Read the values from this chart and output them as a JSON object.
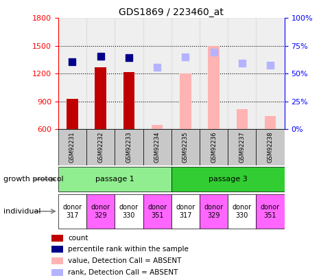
{
  "title": "GDS1869 / 223460_at",
  "samples": [
    "GSM92231",
    "GSM92232",
    "GSM92233",
    "GSM92234",
    "GSM92235",
    "GSM92236",
    "GSM92237",
    "GSM92238"
  ],
  "count_values": [
    930,
    1270,
    1220,
    null,
    null,
    null,
    null,
    null
  ],
  "count_absent_values": [
    null,
    null,
    null,
    645,
    1200,
    1500,
    820,
    745
  ],
  "percentile_values": [
    1330,
    1390,
    1370,
    null,
    null,
    null,
    null,
    null
  ],
  "rank_absent_values": [
    null,
    null,
    null,
    1270,
    1380,
    1430,
    1310,
    1290
  ],
  "ylim_left": [
    600,
    1800
  ],
  "yticks_left": [
    600,
    900,
    1200,
    1500,
    1800
  ],
  "ylim_right": [
    0,
    100
  ],
  "yticks_right": [
    0,
    25,
    50,
    75,
    100
  ],
  "ytick_labels_right": [
    "0%",
    "25%",
    "50%",
    "75%",
    "100%"
  ],
  "color_count": "#c00000",
  "color_percentile": "#00008b",
  "color_absent_value": "#ffb3b3",
  "color_absent_rank": "#b3b3ff",
  "passage1_color": "#90ee90",
  "passage3_color": "#32cd32",
  "passage1_label": "passage 1",
  "passage3_label": "passage 3",
  "individual_colors": [
    "#ffffff",
    "#ff66ff",
    "#ffffff",
    "#ff66ff",
    "#ffffff",
    "#ff66ff",
    "#ffffff",
    "#ff66ff"
  ],
  "individuals": [
    "donor\n317",
    "donor\n329",
    "donor\n330",
    "donor\n351",
    "donor\n317",
    "donor\n329",
    "donor\n330",
    "donor\n351"
  ],
  "legend_items": [
    {
      "label": "count",
      "color": "#c00000"
    },
    {
      "label": "percentile rank within the sample",
      "color": "#00008b"
    },
    {
      "label": "value, Detection Call = ABSENT",
      "color": "#ffb3b3"
    },
    {
      "label": "rank, Detection Call = ABSENT",
      "color": "#b3b3ff"
    }
  ],
  "bar_width": 0.4,
  "marker_size": 7,
  "growth_protocol_label": "growth protocol",
  "individual_label": "individual",
  "sample_box_color": "#c8c8c8",
  "grid_lines": [
    900,
    1200,
    1500
  ]
}
